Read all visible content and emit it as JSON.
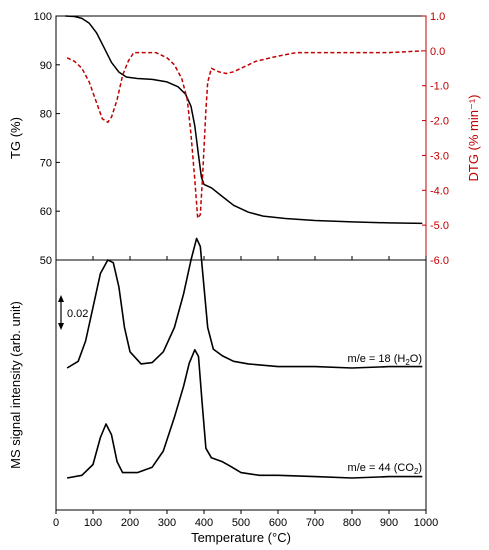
{
  "chart_data": [
    {
      "type": "line",
      "panel": "top",
      "x_range": [
        0,
        1000
      ],
      "axes": {
        "left": {
          "label": "TG (%)",
          "range": [
            50,
            100
          ],
          "ticks": [
            "50",
            "60",
            "70",
            "80",
            "90",
            "100"
          ],
          "color": "#000000"
        },
        "right": {
          "label": "DTG (% min⁻¹)",
          "range": [
            -6.0,
            1.0
          ],
          "ticks": [
            "-6.0",
            "-5.0",
            "-4.0",
            "-3.0",
            "-2.0",
            "-1.0",
            "0.0",
            "1.0"
          ],
          "color": "#c00000"
        }
      },
      "series": [
        {
          "axis": "left",
          "color": "#000000",
          "style": "solid",
          "points": [
            [
              25,
              100
            ],
            [
              50,
              99.9
            ],
            [
              70,
              99.5
            ],
            [
              90,
              98.5
            ],
            [
              110,
              96.5
            ],
            [
              130,
              93.5
            ],
            [
              150,
              90.5
            ],
            [
              170,
              88.5
            ],
            [
              190,
              87.5
            ],
            [
              220,
              87.2
            ],
            [
              260,
              87
            ],
            [
              300,
              86.5
            ],
            [
              330,
              85.5
            ],
            [
              350,
              84
            ],
            [
              365,
              81.5
            ],
            [
              375,
              77.5
            ],
            [
              385,
              71.5
            ],
            [
              393,
              67
            ],
            [
              400,
              65.5
            ],
            [
              420,
              64.8
            ],
            [
              450,
              63
            ],
            [
              480,
              61.2
            ],
            [
              520,
              59.8
            ],
            [
              560,
              59
            ],
            [
              620,
              58.5
            ],
            [
              700,
              58.1
            ],
            [
              800,
              57.8
            ],
            [
              900,
              57.6
            ],
            [
              990,
              57.5
            ]
          ]
        },
        {
          "axis": "right",
          "color": "#c00000",
          "style": "dashed",
          "points": [
            [
              30,
              -0.2
            ],
            [
              50,
              -0.3
            ],
            [
              70,
              -0.5
            ],
            [
              90,
              -0.9
            ],
            [
              110,
              -1.5
            ],
            [
              125,
              -1.95
            ],
            [
              140,
              -2.05
            ],
            [
              150,
              -1.9
            ],
            [
              165,
              -1.4
            ],
            [
              180,
              -0.7
            ],
            [
              195,
              -0.3
            ],
            [
              210,
              -0.05
            ],
            [
              240,
              -0.05
            ],
            [
              270,
              -0.05
            ],
            [
              300,
              -0.2
            ],
            [
              320,
              -0.4
            ],
            [
              340,
              -0.8
            ],
            [
              355,
              -1.4
            ],
            [
              365,
              -2.4
            ],
            [
              375,
              -3.7
            ],
            [
              383,
              -4.8
            ],
            [
              390,
              -4.7
            ],
            [
              395,
              -3.8
            ],
            [
              400,
              -2.8
            ],
            [
              405,
              -1.7
            ],
            [
              410,
              -0.9
            ],
            [
              420,
              -0.5
            ],
            [
              440,
              -0.6
            ],
            [
              460,
              -0.65
            ],
            [
              480,
              -0.6
            ],
            [
              500,
              -0.5
            ],
            [
              540,
              -0.3
            ],
            [
              600,
              -0.15
            ],
            [
              650,
              -0.05
            ],
            [
              700,
              -0.05
            ],
            [
              800,
              -0.05
            ],
            [
              900,
              -0.05
            ],
            [
              990,
              0.0
            ]
          ]
        }
      ]
    },
    {
      "type": "line",
      "panel": "bottom",
      "x_range": [
        0,
        1000
      ],
      "x_ticks": [
        "0",
        "100",
        "200",
        "300",
        "400",
        "500",
        "600",
        "700",
        "800",
        "900",
        "1000"
      ],
      "xlabel": "Temperature (°C)",
      "ylabel": "MS signal intensity (arb. unit)",
      "scale_bar": "0.02",
      "series": [
        {
          "label_parts": [
            "m/e = 18 (H",
            "2",
            "O)"
          ],
          "color": "#000000",
          "points": [
            [
              30,
              0.0
            ],
            [
              60,
              0.005
            ],
            [
              80,
              0.02
            ],
            [
              100,
              0.045
            ],
            [
              120,
              0.07
            ],
            [
              140,
              0.08
            ],
            [
              155,
              0.078
            ],
            [
              170,
              0.06
            ],
            [
              185,
              0.03
            ],
            [
              200,
              0.012
            ],
            [
              230,
              0.003
            ],
            [
              260,
              0.004
            ],
            [
              290,
              0.012
            ],
            [
              320,
              0.03
            ],
            [
              345,
              0.055
            ],
            [
              365,
              0.08
            ],
            [
              380,
              0.096
            ],
            [
              390,
              0.09
            ],
            [
              400,
              0.06
            ],
            [
              410,
              0.03
            ],
            [
              425,
              0.014
            ],
            [
              450,
              0.009
            ],
            [
              480,
              0.005
            ],
            [
              520,
              0.003
            ],
            [
              600,
              0.001
            ],
            [
              700,
              0.001
            ],
            [
              800,
              0.0
            ],
            [
              900,
              0.001
            ],
            [
              990,
              0.001
            ]
          ]
        },
        {
          "label_parts": [
            "m/e = 44 (CO",
            "2",
            ")"
          ],
          "color": "#000000",
          "points": [
            [
              30,
              0.0
            ],
            [
              70,
              0.002
            ],
            [
              100,
              0.01
            ],
            [
              120,
              0.03
            ],
            [
              135,
              0.04
            ],
            [
              150,
              0.032
            ],
            [
              165,
              0.012
            ],
            [
              180,
              0.004
            ],
            [
              220,
              0.004
            ],
            [
              260,
              0.008
            ],
            [
              290,
              0.02
            ],
            [
              320,
              0.045
            ],
            [
              345,
              0.068
            ],
            [
              360,
              0.085
            ],
            [
              375,
              0.095
            ],
            [
              385,
              0.09
            ],
            [
              395,
              0.055
            ],
            [
              405,
              0.022
            ],
            [
              420,
              0.015
            ],
            [
              450,
              0.012
            ],
            [
              470,
              0.009
            ],
            [
              500,
              0.004
            ],
            [
              550,
              0.002
            ],
            [
              600,
              0.002
            ],
            [
              700,
              0.001
            ],
            [
              800,
              0.0
            ],
            [
              900,
              0.001
            ],
            [
              990,
              0.001
            ]
          ]
        }
      ]
    }
  ]
}
